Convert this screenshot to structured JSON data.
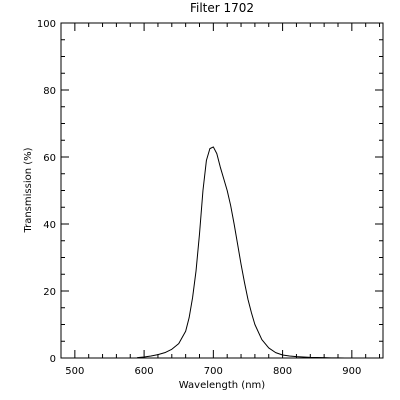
{
  "chart_data": {
    "type": "line",
    "title": "Filter 1702",
    "xlabel": "Wavelength (nm)",
    "ylabel": "Transmission (%)",
    "xlim": [
      480,
      945
    ],
    "ylim": [
      0,
      100
    ],
    "x_ticks": [
      500,
      600,
      700,
      800,
      900
    ],
    "y_ticks": [
      0,
      20,
      40,
      60,
      80,
      100
    ],
    "x_tick_labels": [
      "500",
      "600",
      "700",
      "800",
      "900"
    ],
    "y_tick_labels": [
      "0",
      "20",
      "40",
      "60",
      "80",
      "100"
    ],
    "x_minor_step": 20,
    "y_minor_step": 5,
    "grid": false,
    "line_color": "#000000",
    "series": [
      {
        "x": [
          590,
          600,
          610,
          620,
          630,
          640,
          650,
          660,
          665,
          670,
          675,
          680,
          685,
          690,
          695,
          700,
          705,
          710,
          715,
          720,
          725,
          730,
          735,
          740,
          745,
          750,
          755,
          760,
          770,
          780,
          790,
          800,
          810,
          820,
          830,
          840,
          850,
          860,
          870,
          880,
          890
        ],
        "y": [
          0.1,
          0.3,
          0.6,
          1.0,
          1.6,
          2.6,
          4.3,
          8.0,
          12.0,
          18.0,
          26.0,
          37.0,
          50.0,
          59.0,
          62.5,
          63.0,
          61.0,
          57.0,
          53.5,
          50.0,
          45.5,
          40.0,
          34.0,
          28.0,
          22.5,
          17.5,
          13.5,
          10.0,
          5.5,
          3.0,
          1.6,
          0.9,
          0.6,
          0.4,
          0.3,
          0.2,
          0.15,
          0.1,
          0.05,
          0.05,
          0.0
        ]
      }
    ]
  }
}
